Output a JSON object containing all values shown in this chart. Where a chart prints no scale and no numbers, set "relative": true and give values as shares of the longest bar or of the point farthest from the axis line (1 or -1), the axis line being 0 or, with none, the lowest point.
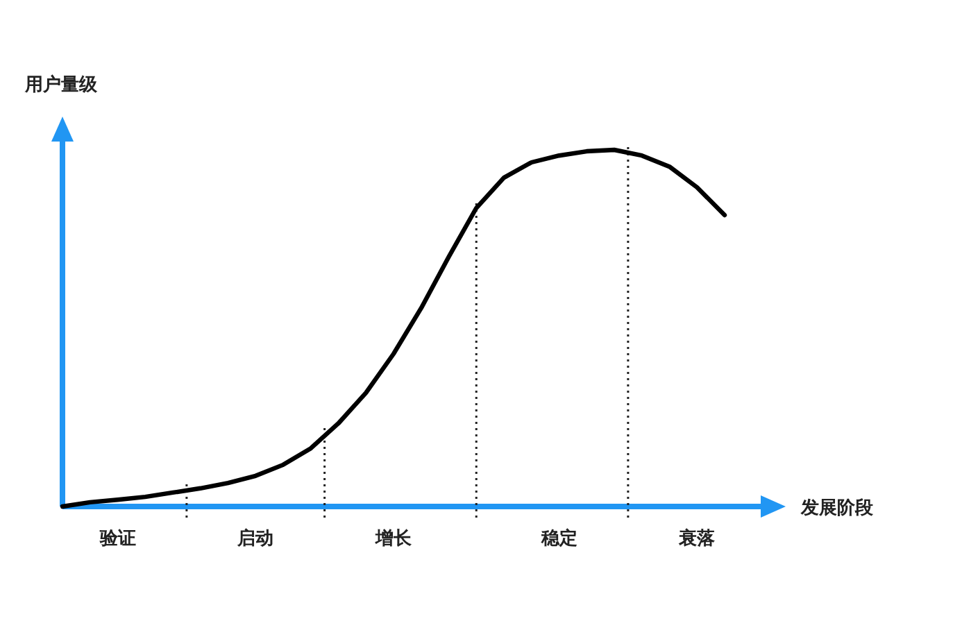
{
  "chart_data": {
    "type": "line",
    "relative": true,
    "xlabel": "发展阶段",
    "ylabel": "用户量级",
    "categories": [
      null,
      null,
      "验证",
      null,
      null,
      null,
      null,
      "启动",
      null,
      null,
      null,
      null,
      "增长",
      null,
      null,
      null,
      null,
      null,
      "稳定",
      null,
      null,
      null,
      null,
      "衰落",
      null
    ],
    "series": [
      {
        "color": "#000000",
        "values": [
          0,
          0.012,
          0.019,
          0.027,
          0.039,
          0.051,
          0.066,
          0.086,
          0.117,
          0.163,
          0.233,
          0.319,
          0.428,
          0.556,
          0.7,
          0.837,
          0.922,
          0.965,
          0.984,
          0.996,
          1,
          0.984,
          0.953,
          0.895,
          0.817
        ]
      }
    ]
  }
}
